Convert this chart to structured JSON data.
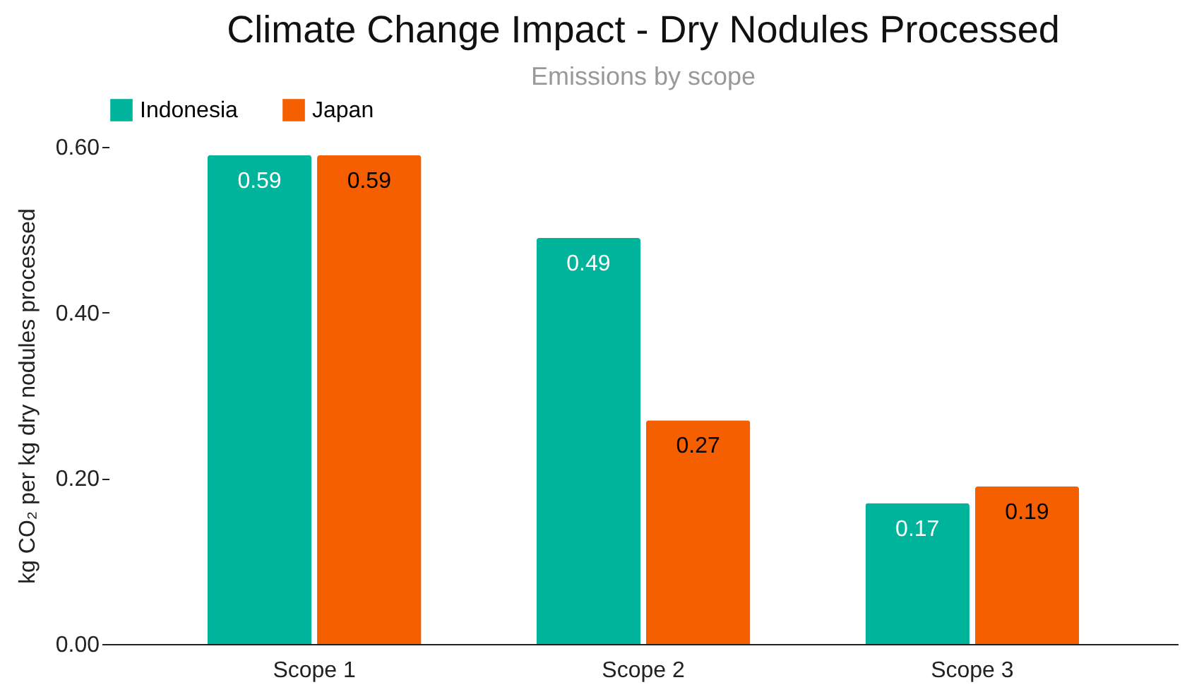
{
  "chart_data": {
    "type": "bar",
    "title": "Climate Change Impact - Dry Nodules Processed",
    "subtitle": "Emissions by scope",
    "ylabel": "kg CO₂ per kg dry nodules processed",
    "categories": [
      "Scope 1",
      "Scope 2",
      "Scope 3"
    ],
    "series": [
      {
        "name": "Indonesia",
        "color": "#00b39b",
        "values": [
          0.59,
          0.49,
          0.17
        ]
      },
      {
        "name": "Japan",
        "color": "#f55f00",
        "values": [
          0.59,
          0.27,
          0.19
        ]
      }
    ],
    "ylim": [
      0,
      0.6
    ],
    "yticks": [
      {
        "value": 0,
        "label": "0.00"
      },
      {
        "value": 0.2,
        "label": "0.20"
      },
      {
        "value": 0.4,
        "label": "0.40"
      },
      {
        "value": 0.6,
        "label": "0.60"
      }
    ],
    "grid": false,
    "legend": "top",
    "data_labels": true
  }
}
